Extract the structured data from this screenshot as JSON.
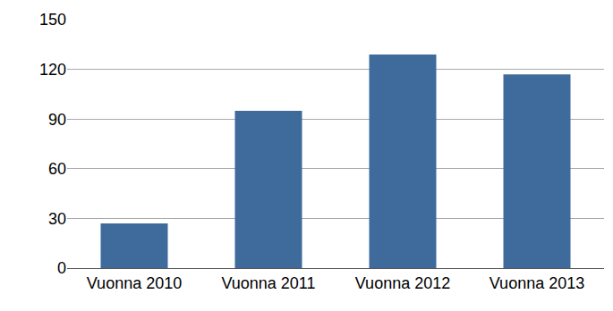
{
  "chart_data": {
    "type": "bar",
    "categories": [
      "Vuonna 2010",
      "Vuonna 2011",
      "Vuonna 2012",
      "Vuonna 2013"
    ],
    "values": [
      27,
      95,
      129,
      117
    ],
    "color": "#3e6b9b",
    "ylim": [
      0,
      150
    ],
    "yticks": [
      0,
      30,
      60,
      90,
      120,
      150
    ],
    "grid": true
  }
}
